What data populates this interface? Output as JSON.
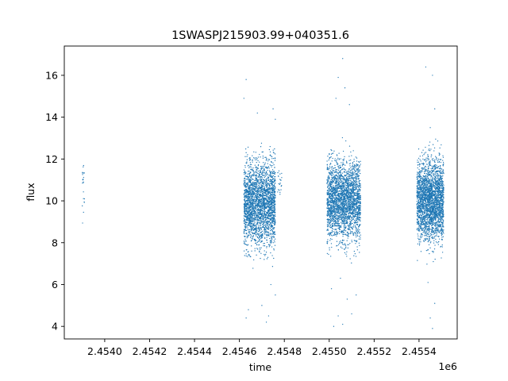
{
  "chart_data": {
    "type": "scatter",
    "title": "1SWASPJ215903.99+040351.6",
    "xlabel": "time",
    "ylabel": "flux",
    "x_offset_label": "1e6",
    "xlim": [
      2.45382,
      2.45557
    ],
    "ylim": [
      3.4,
      17.4
    ],
    "x_ticks": [
      2.454,
      2.4542,
      2.4544,
      2.4546,
      2.4548,
      2.455,
      2.4552,
      2.4554
    ],
    "x_tick_labels": [
      "2.4540",
      "2.4542",
      "2.4544",
      "2.4546",
      "2.4548",
      "2.4550",
      "2.4552",
      "2.4554"
    ],
    "y_ticks": [
      4,
      6,
      8,
      10,
      12,
      14,
      16
    ],
    "y_tick_labels": [
      "4",
      "6",
      "8",
      "10",
      "12",
      "14",
      "16"
    ],
    "grid": false,
    "marker_color": "#1f77b4",
    "clusters": [
      {
        "x_start": 2.4539,
        "x_end": 2.45391,
        "y_min": 8.8,
        "y_max": 11.8,
        "density": "sparse"
      },
      {
        "x_start": 2.45462,
        "x_end": 2.45476,
        "y_min": 7.2,
        "y_max": 12.5,
        "density": "dense"
      },
      {
        "x_start": 2.45477,
        "x_end": 2.45479,
        "y_min": 10.3,
        "y_max": 11.5,
        "density": "sparse"
      },
      {
        "x_start": 2.45499,
        "x_end": 2.45514,
        "y_min": 7.5,
        "y_max": 12.5,
        "density": "dense"
      },
      {
        "x_start": 2.45539,
        "x_end": 2.45551,
        "y_min": 7.5,
        "y_max": 12.5,
        "density": "dense"
      }
    ],
    "outliers": [
      [
        2.45463,
        15.8
      ],
      [
        2.45462,
        14.9
      ],
      [
        2.45463,
        4.4
      ],
      [
        2.45464,
        4.8
      ],
      [
        2.4547,
        5.0
      ],
      [
        2.45473,
        4.5
      ],
      [
        2.45475,
        14.4
      ],
      [
        2.45476,
        13.9
      ],
      [
        2.45468,
        14.2
      ],
      [
        2.45472,
        4.2
      ],
      [
        2.45474,
        6.0
      ],
      [
        2.45476,
        5.5
      ],
      [
        2.45506,
        16.8
      ],
      [
        2.45504,
        15.9
      ],
      [
        2.45507,
        15.4
      ],
      [
        2.45509,
        14.6
      ],
      [
        2.45503,
        14.9
      ],
      [
        2.45502,
        4.0
      ],
      [
        2.45504,
        4.5
      ],
      [
        2.45506,
        4.1
      ],
      [
        2.4551,
        4.6
      ],
      [
        2.45508,
        5.3
      ],
      [
        2.45501,
        5.8
      ],
      [
        2.45512,
        5.5
      ],
      [
        2.45505,
        6.3
      ],
      [
        2.45546,
        16.0
      ],
      [
        2.45543,
        16.4
      ],
      [
        2.45547,
        14.4
      ],
      [
        2.45545,
        13.5
      ],
      [
        2.45546,
        3.9
      ],
      [
        2.45545,
        4.4
      ],
      [
        2.45547,
        5.1
      ],
      [
        2.45544,
        6.1
      ]
    ]
  }
}
